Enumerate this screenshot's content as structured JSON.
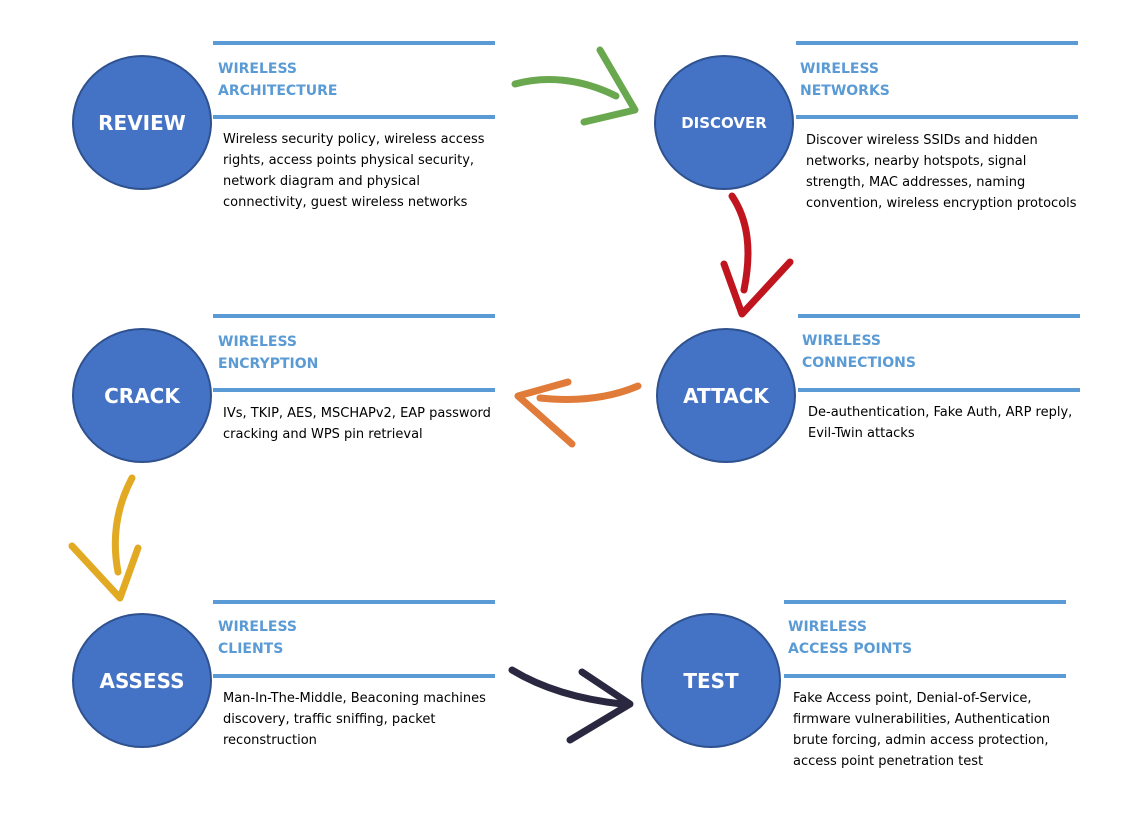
{
  "colors": {
    "circle_fill": "#4472C4",
    "rule": "#5B9BD5",
    "title": "#5B9BD5",
    "arrow_green": "#6AA84F",
    "arrow_red": "#C0141E",
    "arrow_orange": "#E07B39",
    "arrow_yellow": "#E2AA22",
    "arrow_dark": "#2A2740"
  },
  "steps": [
    {
      "name": "REVIEW",
      "title_line1": "WIRELESS",
      "title_line2": "ARCHITECTURE",
      "description": "Wireless security policy, wireless access rights, access points physical security, network diagram and physical connectivity, guest wireless networks"
    },
    {
      "name": "DISCOVER",
      "title_line1": "WIRELESS",
      "title_line2": "NETWORKS",
      "description": "Discover wireless SSIDs and hidden networks, nearby hotspots, signal strength, MAC addresses, naming convention, wireless encryption protocols"
    },
    {
      "name": "CRACK",
      "title_line1": "WIRELESS",
      "title_line2": "ENCRYPTION",
      "description": "IVs, TKIP, AES, MSCHAPv2, EAP password cracking and WPS pin retrieval"
    },
    {
      "name": "ATTACK",
      "title_line1": "WIRELESS",
      "title_line2": "CONNECTIONS",
      "description": "De-authentication, Fake Auth, ARP reply, Evil-Twin attacks"
    },
    {
      "name": "ASSESS",
      "title_line1": "WIRELESS",
      "title_line2": "CLIENTS",
      "description": "Man-In-The-Middle, Beaconing machines discovery, traffic sniffing, packet reconstruction"
    },
    {
      "name": "TEST",
      "title_line1": "WIRELESS",
      "title_line2": "ACCESS POINTS",
      "description": "Fake Access point, Denial-of-Service, firmware vulnerabilities, Authentication brute forcing, admin access protection, access point penetration test"
    }
  ]
}
